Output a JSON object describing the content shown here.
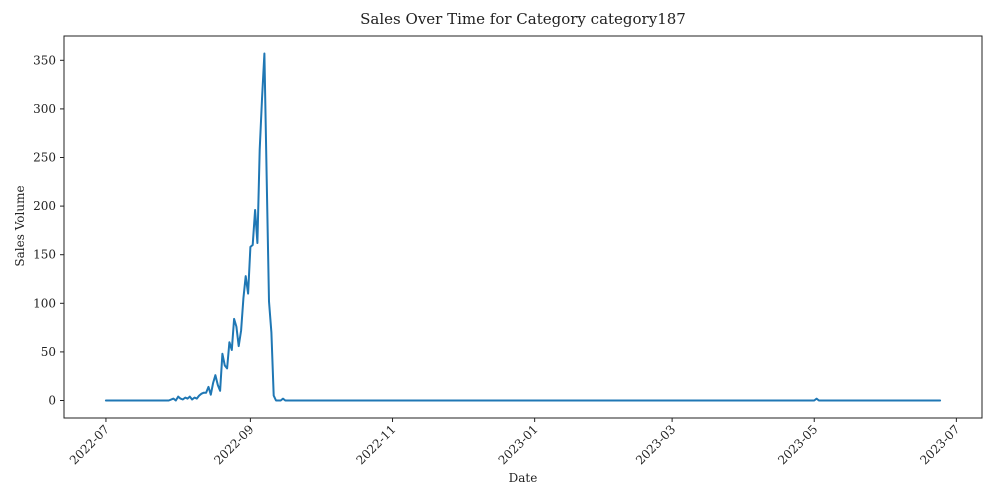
{
  "chart_data": {
    "type": "line",
    "title": "Sales Over Time for Category category187",
    "xlabel": "Date",
    "ylabel": "Sales Volume",
    "x_tick_labels": [
      "2022-07",
      "2022-09",
      "2022-11",
      "2023-01",
      "2023-03",
      "2023-05",
      "2023-07"
    ],
    "x_tick_dates": [
      "2022-07-01",
      "2022-09-01",
      "2022-11-01",
      "2023-01-01",
      "2023-03-01",
      "2023-05-01",
      "2023-07-01"
    ],
    "y_ticks": [
      0,
      50,
      100,
      150,
      200,
      250,
      300,
      350
    ],
    "xlim": [
      "2022-06-13",
      "2023-07-12"
    ],
    "ylim": [
      -18,
      375
    ],
    "grid": false,
    "color": "#1f77b4",
    "series": [
      {
        "x": [
          "2022-07-01",
          "2022-07-28",
          "2022-07-30",
          "2022-07-31",
          "2022-08-01",
          "2022-08-02",
          "2022-08-03",
          "2022-08-04",
          "2022-08-05",
          "2022-08-06",
          "2022-08-07",
          "2022-08-08",
          "2022-08-09",
          "2022-08-10",
          "2022-08-11",
          "2022-08-12",
          "2022-08-13",
          "2022-08-14",
          "2022-08-15",
          "2022-08-16",
          "2022-08-17",
          "2022-08-18",
          "2022-08-19",
          "2022-08-20",
          "2022-08-21",
          "2022-08-22",
          "2022-08-23",
          "2022-08-24",
          "2022-08-25",
          "2022-08-26",
          "2022-08-27",
          "2022-08-28",
          "2022-08-29",
          "2022-08-30",
          "2022-08-31",
          "2022-09-01",
          "2022-09-02",
          "2022-09-03",
          "2022-09-04",
          "2022-09-05",
          "2022-09-06",
          "2022-09-07",
          "2022-09-08",
          "2022-09-09",
          "2022-09-10",
          "2022-09-11",
          "2022-09-12",
          "2022-09-13",
          "2022-09-14",
          "2022-09-15",
          "2022-09-16",
          "2023-05-01",
          "2023-05-02",
          "2023-05-03",
          "2023-06-24"
        ],
        "y": [
          0,
          0,
          2,
          0,
          4,
          2,
          1,
          3,
          2,
          4,
          1,
          3,
          2,
          5,
          7,
          8,
          8,
          14,
          6,
          18,
          26,
          16,
          10,
          48,
          36,
          33,
          60,
          52,
          84,
          76,
          56,
          72,
          105,
          128,
          110,
          158,
          160,
          196,
          162,
          258,
          310,
          357,
          228,
          102,
          70,
          5,
          0,
          0,
          0,
          2,
          0,
          0,
          2,
          0,
          0
        ]
      }
    ]
  }
}
